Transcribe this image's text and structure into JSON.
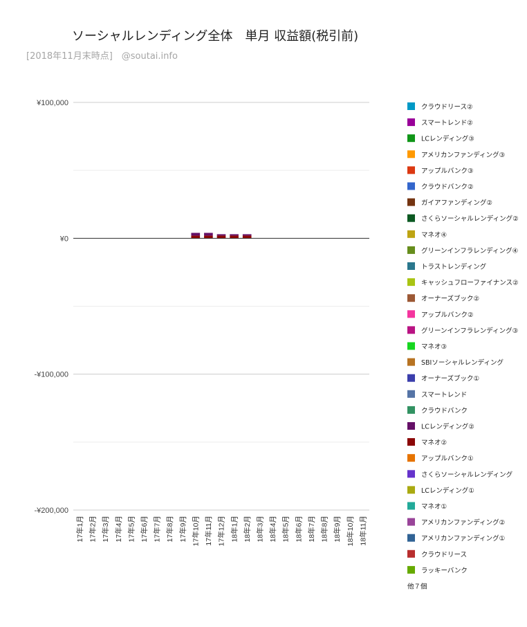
{
  "chart_data": {
    "type": "bar",
    "stacked": true,
    "title": "ソーシャルレンディング全体　単月 収益額(税引前)",
    "subtitle": "[2018年11月末時点]　@soutai.info",
    "xlabel": "",
    "ylabel": "",
    "ylim": [
      -200000,
      100000
    ],
    "yticks": [
      100000,
      0,
      -100000,
      -200000
    ],
    "ytick_labels": [
      "¥100,000",
      "¥0",
      "-¥100,000",
      "-¥200,000"
    ],
    "legend_position": "right",
    "legend_more": "他７個",
    "categories": [
      "17年1月",
      "17年2月",
      "17年3月",
      "17年4月",
      "17年5月",
      "17年6月",
      "17年7月",
      "17年8月",
      "17年9月",
      "17年10月",
      "17年11月",
      "17年12月",
      "18年1月",
      "18年2月",
      "18年3月",
      "18年4月",
      "18年5月",
      "18年6月",
      "18年7月",
      "18年8月",
      "18年9月",
      "18年10月",
      "18年11月"
    ],
    "series": [
      {
        "name": "ラッキーバンク",
        "color": "#66aa00",
        "values": [
          0,
          0,
          0,
          0,
          0,
          0,
          0,
          0,
          0,
          0,
          0,
          0,
          0,
          0,
          0,
          0,
          0,
          0,
          0,
          0,
          0,
          0,
          0
        ]
      },
      {
        "name": "クラウドリース",
        "color": "#b82e2e",
        "values": [
          0,
          0,
          0,
          0,
          0,
          0,
          0,
          0,
          0,
          0,
          0,
          0,
          0,
          0,
          0,
          0,
          0,
          0,
          0,
          0,
          0,
          0,
          0
        ]
      },
      {
        "name": "アメリカンファンディング①",
        "color": "#316395",
        "values": [
          0,
          0,
          0,
          0,
          0,
          0,
          0,
          0,
          0,
          0,
          0,
          0,
          0,
          0,
          0,
          0,
          0,
          0,
          0,
          0,
          0,
          0,
          0
        ]
      },
      {
        "name": "アメリカンファンディング②",
        "color": "#994499",
        "values": [
          0,
          0,
          0,
          0,
          0,
          0,
          0,
          0,
          0,
          0,
          0,
          0,
          0,
          0,
          0,
          0,
          0,
          0,
          0,
          0,
          0,
          0,
          0
        ]
      },
      {
        "name": "マネオ①",
        "color": "#22aa99",
        "values": [
          0,
          0,
          0,
          0,
          0,
          0,
          0,
          0,
          0,
          0,
          0,
          0,
          0,
          0,
          0,
          0,
          0,
          0,
          0,
          0,
          0,
          0,
          0
        ]
      },
      {
        "name": "LCレンディング①",
        "color": "#aaaa11",
        "values": [
          0,
          0,
          0,
          0,
          0,
          0,
          0,
          0,
          0,
          0,
          0,
          0,
          0,
          0,
          0,
          0,
          0,
          0,
          0,
          0,
          0,
          0,
          0
        ]
      },
      {
        "name": "さくらソーシャルレンディング",
        "color": "#6633cc",
        "values": [
          0,
          0,
          0,
          0,
          0,
          0,
          0,
          0,
          0,
          0,
          0,
          0,
          0,
          0,
          0,
          0,
          0,
          0,
          0,
          0,
          0,
          0,
          0
        ]
      },
      {
        "name": "アップルバンク①",
        "color": "#e67300",
        "values": [
          0,
          0,
          0,
          0,
          0,
          0,
          0,
          0,
          0,
          0,
          0,
          0,
          0,
          0,
          0,
          0,
          0,
          0,
          0,
          0,
          0,
          0,
          0
        ]
      },
      {
        "name": "マネオ②",
        "color": "#8b0707",
        "values": [
          0,
          0,
          0,
          0,
          0,
          0,
          0,
          0,
          0,
          2000,
          2000,
          2000,
          2000,
          2000,
          0,
          0,
          0,
          0,
          0,
          0,
          0,
          0,
          0
        ]
      },
      {
        "name": "LCレンディング②",
        "color": "#651067",
        "values": [
          0,
          0,
          0,
          0,
          0,
          0,
          0,
          0,
          0,
          2000,
          2000,
          1000,
          1000,
          1000,
          0,
          0,
          0,
          0,
          0,
          0,
          0,
          0,
          0
        ]
      },
      {
        "name": "クラウドバンク",
        "color": "#329262",
        "values": [
          0,
          0,
          0,
          0,
          0,
          0,
          0,
          0,
          0,
          0,
          0,
          0,
          0,
          0,
          0,
          0,
          0,
          0,
          0,
          0,
          0,
          0,
          0
        ]
      },
      {
        "name": "スマートレンド",
        "color": "#5574a6",
        "values": [
          0,
          0,
          0,
          0,
          0,
          0,
          0,
          0,
          0,
          0,
          0,
          0,
          0,
          0,
          0,
          0,
          0,
          0,
          0,
          0,
          0,
          0,
          0
        ]
      },
      {
        "name": "オーナーズブック①",
        "color": "#3b3eac",
        "values": [
          0,
          0,
          0,
          0,
          0,
          0,
          0,
          0,
          0,
          0,
          0,
          0,
          0,
          0,
          0,
          0,
          0,
          0,
          0,
          0,
          0,
          0,
          0
        ]
      },
      {
        "name": "SBIソーシャルレンディング",
        "color": "#b77322",
        "values": [
          0,
          0,
          0,
          0,
          0,
          0,
          0,
          0,
          0,
          0,
          0,
          0,
          0,
          0,
          0,
          0,
          0,
          0,
          0,
          0,
          0,
          0,
          0
        ]
      },
      {
        "name": "マネオ③",
        "color": "#16d620",
        "values": [
          0,
          0,
          0,
          0,
          0,
          0,
          0,
          0,
          0,
          0,
          0,
          0,
          0,
          0,
          0,
          0,
          0,
          0,
          0,
          0,
          0,
          0,
          0
        ]
      },
      {
        "name": "グリーンインフラレンディング③",
        "color": "#b91383",
        "values": [
          0,
          0,
          0,
          0,
          0,
          0,
          0,
          0,
          0,
          0,
          0,
          0,
          0,
          0,
          0,
          0,
          0,
          0,
          0,
          0,
          0,
          0,
          0
        ]
      },
      {
        "name": "アップルバンク②",
        "color": "#f4359e",
        "values": [
          0,
          0,
          0,
          0,
          0,
          0,
          0,
          0,
          0,
          0,
          0,
          0,
          0,
          0,
          0,
          0,
          0,
          0,
          0,
          0,
          0,
          0,
          0
        ]
      },
      {
        "name": "オーナーズブック②",
        "color": "#9c5935",
        "values": [
          0,
          0,
          0,
          0,
          0,
          0,
          0,
          0,
          0,
          0,
          0,
          0,
          0,
          0,
          0,
          0,
          0,
          0,
          0,
          0,
          0,
          0,
          0
        ]
      },
      {
        "name": "キャッシュフローファイナンス②",
        "color": "#a9c413",
        "values": [
          0,
          0,
          0,
          0,
          0,
          0,
          0,
          0,
          0,
          0,
          0,
          0,
          0,
          0,
          0,
          0,
          0,
          0,
          0,
          0,
          0,
          0,
          0
        ]
      },
      {
        "name": "トラストレンディング",
        "color": "#2a778d",
        "values": [
          0,
          0,
          0,
          0,
          0,
          0,
          0,
          0,
          0,
          0,
          0,
          0,
          0,
          0,
          0,
          0,
          0,
          0,
          0,
          0,
          0,
          0,
          0
        ]
      },
      {
        "name": "グリーンインフラレンディング④",
        "color": "#668d1c",
        "values": [
          0,
          0,
          0,
          0,
          0,
          0,
          0,
          0,
          0,
          0,
          0,
          0,
          0,
          0,
          0,
          0,
          0,
          0,
          0,
          0,
          0,
          0,
          0
        ]
      },
      {
        "name": "マネオ④",
        "color": "#bea413",
        "values": [
          0,
          0,
          0,
          0,
          0,
          0,
          0,
          0,
          0,
          0,
          0,
          0,
          0,
          0,
          0,
          0,
          0,
          0,
          0,
          0,
          0,
          0,
          0
        ]
      },
      {
        "name": "さくらソーシャルレンディング②",
        "color": "#0c5922",
        "values": [
          0,
          0,
          0,
          0,
          0,
          0,
          0,
          0,
          0,
          0,
          0,
          0,
          0,
          0,
          0,
          0,
          0,
          0,
          0,
          0,
          0,
          0,
          0
        ]
      },
      {
        "name": "ガイアファンディング②",
        "color": "#743411",
        "values": [
          0,
          0,
          0,
          0,
          0,
          0,
          0,
          0,
          0,
          0,
          0,
          0,
          0,
          0,
          0,
          0,
          0,
          0,
          0,
          0,
          0,
          0,
          0
        ]
      },
      {
        "name": "クラウドバンク②",
        "color": "#3366cc",
        "values": [
          0,
          0,
          0,
          0,
          0,
          0,
          0,
          0,
          0,
          0,
          0,
          0,
          0,
          0,
          0,
          0,
          0,
          0,
          0,
          0,
          0,
          0,
          0
        ]
      },
      {
        "name": "アップルバンク③",
        "color": "#dc3912",
        "values": [
          0,
          0,
          0,
          0,
          0,
          0,
          0,
          0,
          0,
          0,
          0,
          0,
          0,
          0,
          0,
          0,
          0,
          0,
          0,
          0,
          0,
          0,
          0
        ]
      },
      {
        "name": "アメリカンファンディング③",
        "color": "#ff9900",
        "values": [
          0,
          0,
          0,
          0,
          0,
          0,
          0,
          0,
          0,
          0,
          0,
          0,
          0,
          0,
          0,
          0,
          0,
          0,
          0,
          0,
          0,
          0,
          0
        ]
      },
      {
        "name": "LCレンディング③",
        "color": "#109618",
        "values": [
          0,
          0,
          0,
          0,
          0,
          0,
          0,
          0,
          0,
          0,
          0,
          0,
          0,
          0,
          0,
          0,
          0,
          0,
          0,
          0,
          0,
          0,
          0
        ]
      },
      {
        "name": "スマートレンド②",
        "color": "#990099",
        "values": [
          0,
          0,
          0,
          0,
          0,
          0,
          0,
          0,
          0,
          0,
          0,
          0,
          0,
          0,
          0,
          0,
          0,
          0,
          0,
          0,
          0,
          0,
          0
        ]
      },
      {
        "name": "クラウドリース②",
        "color": "#0099c6",
        "values": [
          0,
          0,
          0,
          0,
          0,
          0,
          0,
          0,
          0,
          0,
          0,
          0,
          0,
          0,
          0,
          0,
          0,
          0,
          0,
          0,
          0,
          0,
          0
        ]
      }
    ]
  }
}
